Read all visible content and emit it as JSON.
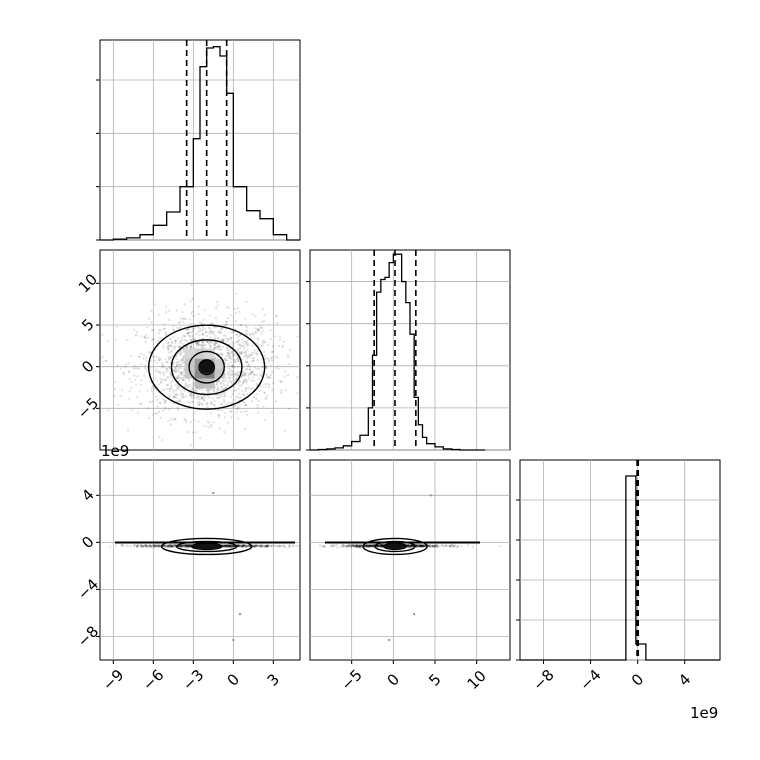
{
  "chart_data": [
    {
      "type": "histogram",
      "panel": "marginal-x",
      "grid": true,
      "bin_edges": [
        -10,
        -9,
        -8,
        -7,
        -6,
        -5,
        -4,
        -3,
        -2.5,
        -2,
        -1.5,
        -1,
        -0.5,
        0,
        1,
        2,
        3,
        4,
        5
      ],
      "counts": [
        0,
        0.3,
        0.8,
        2,
        5.5,
        10.5,
        20,
        38,
        65,
        72,
        72.5,
        69,
        55,
        20,
        11,
        8,
        2,
        0
      ],
      "quantile_lines": [
        -3.5,
        -2.0,
        -0.5
      ]
    },
    {
      "type": "scatter",
      "panel": "x-vs-y",
      "grid": true,
      "contour_levels": 4,
      "xlim": [
        -10,
        5
      ],
      "ylim": [
        -10,
        14
      ],
      "center": [
        -2,
        0
      ],
      "spread": [
        2.6,
        3.0
      ],
      "y_ticks": [
        {
          "value": 10,
          "label": "10"
        },
        {
          "value": 5,
          "label": "5"
        },
        {
          "value": 0,
          "label": "0"
        },
        {
          "value": -5,
          "label": "−5"
        }
      ],
      "offset_label": "1e9"
    },
    {
      "type": "histogram",
      "panel": "marginal-y",
      "grid": true,
      "bin_edges": [
        -10,
        -9,
        -8,
        -7,
        -6,
        -5,
        -4,
        -3,
        -2.5,
        -2,
        -1.5,
        -1,
        -0.5,
        0,
        0.5,
        1,
        1.5,
        2,
        2.5,
        3,
        3.5,
        4,
        5,
        6,
        7,
        8,
        9,
        10,
        11
      ],
      "counts": [
        0,
        0.2,
        0.5,
        1,
        2,
        4,
        7,
        20,
        45,
        75,
        81,
        82,
        89,
        93,
        93,
        80,
        70,
        55,
        25,
        12,
        6,
        3,
        1.5,
        0.5,
        0.2,
        0,
        0,
        0
      ],
      "quantile_lines": [
        -2.3,
        0.2,
        2.7
      ]
    },
    {
      "type": "scatter",
      "panel": "x-vs-z",
      "grid": true,
      "xlim": [
        -10,
        5
      ],
      "ylim": [
        -10,
        7
      ],
      "x_ticks": [
        {
          "value": -9,
          "label": "−9"
        },
        {
          "value": -6,
          "label": "−6"
        },
        {
          "value": -3,
          "label": "−3"
        },
        {
          "value": 0,
          "label": "0"
        },
        {
          "value": 3,
          "label": "3"
        }
      ],
      "y_ticks": [
        {
          "value": 4,
          "label": "4"
        },
        {
          "value": 0,
          "label": "0"
        },
        {
          "value": -4,
          "label": "−4"
        },
        {
          "value": -8,
          "label": "−8"
        }
      ]
    },
    {
      "type": "scatter",
      "panel": "y-vs-z",
      "grid": true,
      "xlim": [
        -10,
        14
      ],
      "ylim": [
        -10,
        7
      ],
      "x_ticks": [
        {
          "value": -5,
          "label": "−5"
        },
        {
          "value": 0,
          "label": "0"
        },
        {
          "value": 5,
          "label": "5"
        },
        {
          "value": 10,
          "label": "10"
        }
      ]
    },
    {
      "type": "histogram",
      "panel": "marginal-z",
      "grid": true,
      "xlim": [
        -10,
        7
      ],
      "bin_edges": [
        -10,
        -1,
        -0.15,
        0.7,
        7
      ],
      "counts": [
        0,
        46,
        4,
        0
      ],
      "quantile_lines": [
        -0.05,
        0,
        0.05
      ],
      "x_ticks": [
        {
          "value": -8,
          "label": "−8"
        },
        {
          "value": -4,
          "label": "−4"
        },
        {
          "value": 0,
          "label": "0"
        },
        {
          "value": 4,
          "label": "4"
        }
      ],
      "offset_label": "1e9"
    }
  ]
}
